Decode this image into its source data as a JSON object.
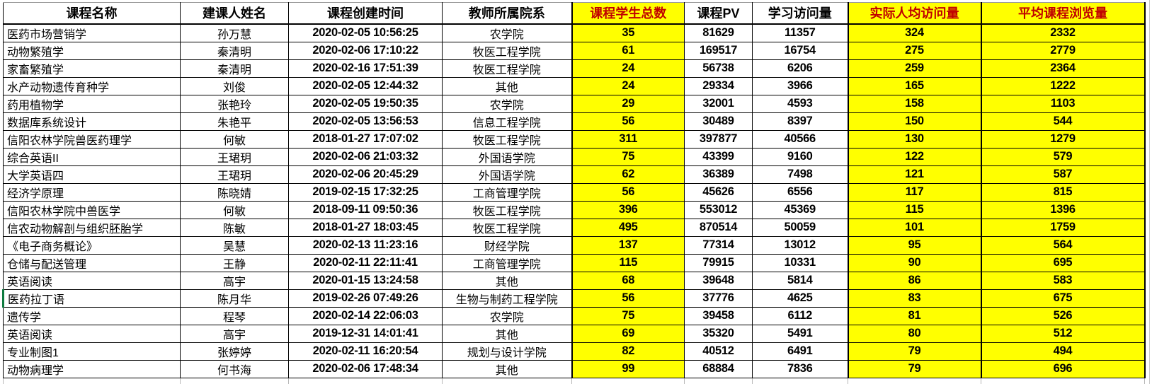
{
  "table": {
    "columns": [
      {
        "id": "course-name",
        "label": "课程名称",
        "highlight": false
      },
      {
        "id": "creator-name",
        "label": "建课人姓名",
        "highlight": false
      },
      {
        "id": "create-time",
        "label": "课程创建时间",
        "highlight": false
      },
      {
        "id": "department",
        "label": "教师所属院系",
        "highlight": false
      },
      {
        "id": "student-count",
        "label": "课程学生总数",
        "highlight": true
      },
      {
        "id": "course-pv",
        "label": "课程PV",
        "highlight": false
      },
      {
        "id": "learning-visits",
        "label": "学习访问量",
        "highlight": false
      },
      {
        "id": "per-capita-visits",
        "label": "实际人均访问量",
        "highlight": true
      },
      {
        "id": "avg-course-views",
        "label": "平均课程浏览量",
        "highlight": true
      }
    ],
    "rows": [
      [
        "医药市场营销学",
        "孙万慧",
        "2020-02-05 10:56:25",
        "农学院",
        "35",
        "81629",
        "11357",
        "324",
        "2332"
      ],
      [
        "动物繁殖学",
        "秦清明",
        "2020-02-06 17:10:22",
        "牧医工程学院",
        "61",
        "169517",
        "16754",
        "275",
        "2779"
      ],
      [
        "家畜繁殖学",
        "秦清明",
        "2020-02-16 17:51:39",
        "牧医工程学院",
        "24",
        "56738",
        "6206",
        "259",
        "2364"
      ],
      [
        "水产动物遗传育种学",
        "刘俊",
        "2020-02-05 12:44:32",
        "其他",
        "24",
        "29334",
        "3966",
        "165",
        "1222"
      ],
      [
        "药用植物学",
        "张艳玲",
        "2020-02-05 19:50:35",
        "农学院",
        "29",
        "32001",
        "4593",
        "158",
        "1103"
      ],
      [
        "数据库系统设计",
        "朱艳平",
        "2020-02-05 13:56:53",
        "信息工程学院",
        "56",
        "30489",
        "8397",
        "150",
        "544"
      ],
      [
        "信阳农林学院兽医药理学",
        "何敏",
        "2018-01-27 17:07:02",
        "牧医工程学院",
        "311",
        "397877",
        "40566",
        "130",
        "1279"
      ],
      [
        "综合英语II",
        "王珺玥",
        "2020-02-06 21:03:32",
        "外国语学院",
        "75",
        "43399",
        "9160",
        "122",
        "579"
      ],
      [
        "大学英语四",
        "王珺玥",
        "2020-02-06 20:45:29",
        "外国语学院",
        "62",
        "36389",
        "7498",
        "121",
        "587"
      ],
      [
        "经济学原理",
        "陈晓婧",
        "2019-02-15 17:32:25",
        "工商管理学院",
        "56",
        "45626",
        "6556",
        "117",
        "815"
      ],
      [
        "信阳农林学院中兽医学",
        "何敏",
        "2018-09-11 09:50:36",
        "牧医工程学院",
        "396",
        "553012",
        "45369",
        "115",
        "1396"
      ],
      [
        "信农动物解剖与组织胚胎学",
        "陈敏",
        "2018-01-27 18:03:45",
        "牧医工程学院",
        "495",
        "870514",
        "50059",
        "101",
        "1759"
      ],
      [
        "《电子商务概论》",
        "吴慧",
        "2020-02-13 11:23:16",
        "财经学院",
        "137",
        "77314",
        "13012",
        "95",
        "564"
      ],
      [
        "仓储与配送管理",
        "王静",
        "2020-02-11 22:11:41",
        "工商管理学院",
        "115",
        "79915",
        "10331",
        "90",
        "695"
      ],
      [
        "英语阅读",
        "高宇",
        "2020-01-15 13:24:58",
        "其他",
        "68",
        "39648",
        "5814",
        "86",
        "583"
      ],
      [
        "医药拉丁语",
        "陈月华",
        "2019-02-26 07:49:26",
        "生物与制药工程学院",
        "56",
        "37776",
        "4625",
        "83",
        "675"
      ],
      [
        "遗传学",
        "程琴",
        "2020-02-14 22:06:03",
        "农学院",
        "75",
        "39458",
        "6112",
        "81",
        "526"
      ],
      [
        "英语阅读",
        "高宇",
        "2019-12-31 14:01:41",
        "其他",
        "69",
        "35320",
        "5491",
        "80",
        "512"
      ],
      [
        "专业制图1",
        "张婷婷",
        "2020-02-11 16:20:54",
        "规划与设计学院",
        "82",
        "40512",
        "6491",
        "79",
        "494"
      ],
      [
        "动物病理学",
        "何书海",
        "2020-02-06 17:48:34",
        "其他",
        "99",
        "68884",
        "7836",
        "79",
        "696"
      ]
    ],
    "selection": {
      "row_index": 15,
      "col_index": 0
    }
  },
  "colors": {
    "highlight_bg": "#FFFF00",
    "highlight_header_text": "#C00000",
    "selection_border": "#0E7B3F",
    "grid_line": "#000000"
  }
}
